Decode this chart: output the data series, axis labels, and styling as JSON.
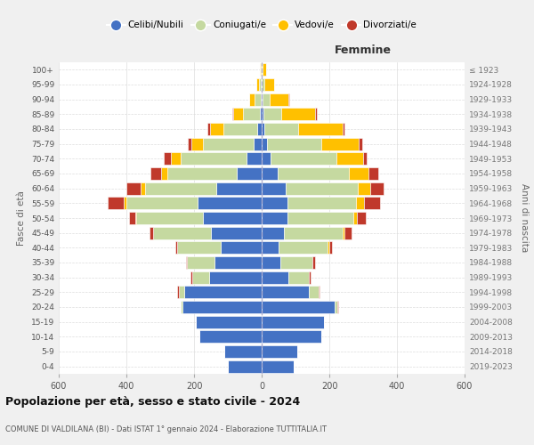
{
  "age_groups": [
    "0-4",
    "5-9",
    "10-14",
    "15-19",
    "20-24",
    "25-29",
    "30-34",
    "35-39",
    "40-44",
    "45-49",
    "50-54",
    "55-59",
    "60-64",
    "65-69",
    "70-74",
    "75-79",
    "80-84",
    "85-89",
    "90-94",
    "95-99",
    "100+"
  ],
  "birth_years": [
    "2019-2023",
    "2014-2018",
    "2009-2013",
    "2004-2008",
    "1999-2003",
    "1994-1998",
    "1989-1993",
    "1984-1988",
    "1979-1983",
    "1974-1978",
    "1969-1973",
    "1964-1968",
    "1959-1963",
    "1954-1958",
    "1949-1953",
    "1944-1948",
    "1939-1943",
    "1934-1938",
    "1929-1933",
    "1924-1928",
    "≤ 1923"
  ],
  "males": {
    "single": [
      100,
      110,
      185,
      195,
      235,
      230,
      155,
      140,
      120,
      150,
      175,
      190,
      135,
      75,
      45,
      25,
      12,
      6,
      3,
      2,
      1
    ],
    "married": [
      0,
      0,
      0,
      0,
      5,
      15,
      50,
      80,
      130,
      170,
      195,
      210,
      210,
      205,
      195,
      150,
      100,
      50,
      18,
      7,
      2
    ],
    "widowed": [
      0,
      0,
      0,
      0,
      0,
      0,
      0,
      0,
      0,
      0,
      4,
      8,
      12,
      18,
      28,
      32,
      40,
      28,
      15,
      6,
      2
    ],
    "divorced": [
      0,
      0,
      0,
      0,
      0,
      4,
      6,
      5,
      6,
      12,
      18,
      48,
      44,
      30,
      22,
      12,
      8,
      4,
      2,
      1,
      0
    ]
  },
  "females": {
    "single": [
      95,
      105,
      175,
      185,
      215,
      140,
      80,
      55,
      50,
      65,
      75,
      75,
      70,
      48,
      26,
      16,
      8,
      4,
      2,
      1,
      1
    ],
    "married": [
      0,
      0,
      0,
      0,
      8,
      28,
      60,
      95,
      145,
      175,
      195,
      205,
      215,
      210,
      195,
      160,
      100,
      55,
      22,
      7,
      2
    ],
    "widowed": [
      0,
      0,
      0,
      0,
      0,
      0,
      0,
      0,
      4,
      4,
      12,
      22,
      36,
      58,
      78,
      110,
      132,
      100,
      55,
      28,
      9
    ],
    "divorced": [
      0,
      0,
      0,
      0,
      2,
      4,
      6,
      8,
      10,
      22,
      26,
      48,
      40,
      30,
      12,
      12,
      6,
      4,
      2,
      1,
      0
    ]
  },
  "colors": {
    "single": "#4472c4",
    "married": "#c5d9a0",
    "widowed": "#ffc000",
    "divorced": "#c0392b"
  },
  "legend_labels": [
    "Celibi/Nubili",
    "Coniugati/e",
    "Vedovi/e",
    "Divorziati/e"
  ],
  "title": "Popolazione per età, sesso e stato civile - 2024",
  "subtitle": "COMUNE DI VALDILANA (BI) - Dati ISTAT 1° gennaio 2024 - Elaborazione TUTTITALIA.IT",
  "xlabel_right": "Femmine",
  "ylabel_left": "Fasce di età",
  "ylabel_right": "Anni di nascita",
  "xlim": 600,
  "bg_color": "#f0f0f0",
  "plot_bg": "#ffffff"
}
